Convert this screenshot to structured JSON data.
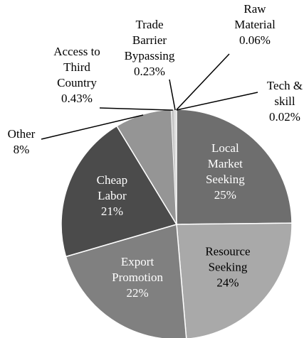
{
  "chart_data": {
    "type": "pie",
    "categories": [
      "Local\nMarket\nSeeking",
      "Resource\nSeeking",
      "Export\nPromotion",
      "Cheap\nLabor",
      "Other",
      "Access to\nThird\nCountry",
      "Trade\nBarrier\nBypassing",
      "Raw\nMaterial",
      "Tech &\nskill"
    ],
    "values": [
      25,
      24,
      22,
      21,
      8,
      0.43,
      0.23,
      0.06,
      0.02
    ],
    "value_labels": [
      "25%",
      "24%",
      "22%",
      "21%",
      "8%",
      "0.43%",
      "0.23%",
      "0.06%",
      "0.02%"
    ],
    "colors": [
      "#6e6e6e",
      "#a9a9a9",
      "#808080",
      "#4b4b4b",
      "#959595",
      "#c8c8c8",
      "#dadada",
      "#b0b0b0",
      "#e6e6e6"
    ]
  }
}
